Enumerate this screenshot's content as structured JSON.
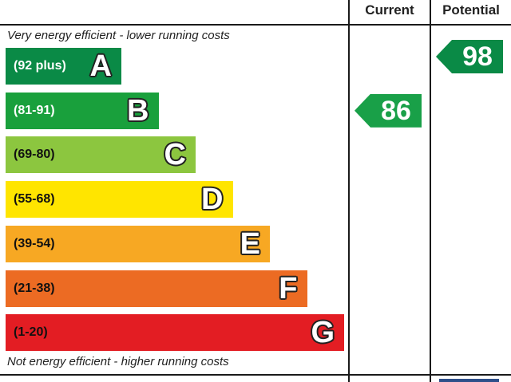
{
  "chart_data": {
    "type": "bar",
    "headers": {
      "current": "Current",
      "potential": "Potential"
    },
    "top_caption": "Very energy efficient - lower running costs",
    "bottom_caption": "Not energy efficient - higher running costs",
    "bands": [
      {
        "range": "(92 plus)",
        "letter": "A",
        "color": "#0a8a46",
        "text_color": "#ffffff"
      },
      {
        "range": "(81-91)",
        "letter": "B",
        "color": "#19a03c",
        "text_color": "#ffffff"
      },
      {
        "range": "(69-80)",
        "letter": "C",
        "color": "#8cc63f",
        "text_color": "#111111"
      },
      {
        "range": "(55-68)",
        "letter": "D",
        "color": "#ffe500",
        "text_color": "#111111"
      },
      {
        "range": "(39-54)",
        "letter": "E",
        "color": "#f7a823",
        "text_color": "#111111"
      },
      {
        "range": "(21-38)",
        "letter": "F",
        "color": "#ec6b23",
        "text_color": "#111111"
      },
      {
        "range": "(1-20)",
        "letter": "G",
        "color": "#e31d23",
        "text_color": "#111111"
      }
    ],
    "current": {
      "value": 86,
      "band": "B",
      "color": "#19a048"
    },
    "potential": {
      "value": 98,
      "band": "A",
      "color": "#0a8a46"
    }
  }
}
